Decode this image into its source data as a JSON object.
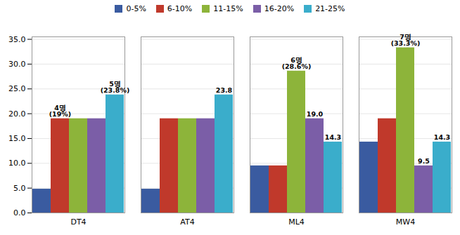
{
  "chart_data": {
    "type": "bar",
    "categories": [
      "DT4",
      "AT4",
      "ML4",
      "MW4"
    ],
    "series": [
      {
        "name": "0-5%",
        "color": "#3A5BA0",
        "values": [
          4.8,
          4.8,
          9.5,
          14.3
        ]
      },
      {
        "name": "6-10%",
        "color": "#C0392B",
        "values": [
          19.0,
          19.0,
          9.5,
          19.0
        ]
      },
      {
        "name": "11-15%",
        "color": "#8DB43A",
        "values": [
          19.0,
          19.0,
          28.6,
          33.3
        ]
      },
      {
        "name": "16-20%",
        "color": "#7B5EA7",
        "values": [
          19.0,
          19.0,
          19.0,
          9.5
        ]
      },
      {
        "name": "21-25%",
        "color": "#3AADCB",
        "values": [
          23.8,
          23.8,
          14.3,
          14.3
        ]
      }
    ],
    "annotations": [
      {
        "category": "DT4",
        "series": "6-10%",
        "text": "4명\n(19%)"
      },
      {
        "category": "DT4",
        "series": "21-25%",
        "text": "5명\n(23.8%)"
      },
      {
        "category": "AT4",
        "series": "21-25%",
        "text": "23.8"
      },
      {
        "category": "ML4",
        "series": "11-15%",
        "text": "6명\n(28.6%)"
      },
      {
        "category": "ML4",
        "series": "16-20%",
        "text": "19.0"
      },
      {
        "category": "ML4",
        "series": "21-25%",
        "text": "14.3"
      },
      {
        "category": "MW4",
        "series": "11-15%",
        "text": "7명\n(33.3%)"
      },
      {
        "category": "MW4",
        "series": "16-20%",
        "text": "9.5"
      },
      {
        "category": "MW4",
        "series": "21-25%",
        "text": "14.3"
      }
    ],
    "ylim": [
      0,
      35.5
    ],
    "yticks": [
      {
        "value": 0.0,
        "label": "0.0"
      },
      {
        "value": 5.0,
        "label": "5.0"
      },
      {
        "value": 10.0,
        "label": "10.0"
      },
      {
        "value": 15.0,
        "label": "15.0"
      },
      {
        "value": 20.0,
        "label": "20.0"
      },
      {
        "value": 25.0,
        "label": "25.0"
      },
      {
        "value": 30.0,
        "label": "30.0"
      },
      {
        "value": 35.0,
        "label": "35.0"
      }
    ],
    "grid": true,
    "legend": "upper center"
  }
}
